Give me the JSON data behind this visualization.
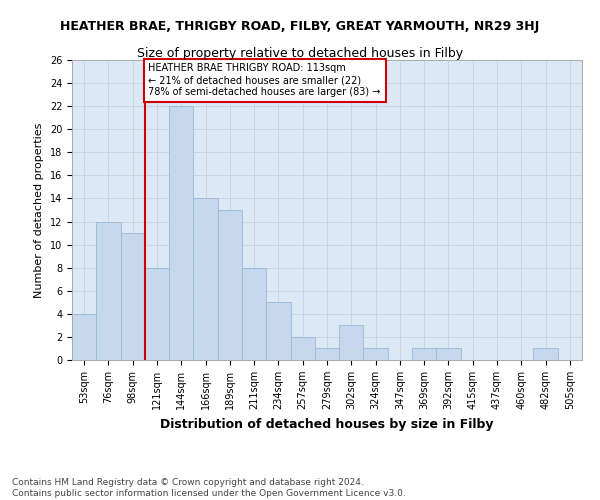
{
  "title": "HEATHER BRAE, THRIGBY ROAD, FILBY, GREAT YARMOUTH, NR29 3HJ",
  "subtitle": "Size of property relative to detached houses in Filby",
  "xlabel": "Distribution of detached houses by size in Filby",
  "ylabel": "Number of detached properties",
  "footer_line1": "Contains HM Land Registry data © Crown copyright and database right 2024.",
  "footer_line2": "Contains public sector information licensed under the Open Government Licence v3.0.",
  "bin_labels": [
    "53sqm",
    "76sqm",
    "98sqm",
    "121sqm",
    "144sqm",
    "166sqm",
    "189sqm",
    "211sqm",
    "234sqm",
    "257sqm",
    "279sqm",
    "302sqm",
    "324sqm",
    "347sqm",
    "369sqm",
    "392sqm",
    "415sqm",
    "437sqm",
    "460sqm",
    "482sqm",
    "505sqm"
  ],
  "bar_values": [
    4,
    12,
    11,
    8,
    22,
    14,
    13,
    8,
    5,
    2,
    1,
    3,
    1,
    0,
    1,
    1,
    0,
    0,
    0,
    1,
    0
  ],
  "bar_color": "#c5d8ed",
  "bar_edge_color": "#9ab8d4",
  "grid_color": "#c8d4e0",
  "plot_bg_color": "#dce9f5",
  "fig_bg_color": "#ffffff",
  "red_line_index": 3,
  "annotation_text_line1": "HEATHER BRAE THRIGBY ROAD: 113sqm",
  "annotation_text_line2": "← 21% of detached houses are smaller (22)",
  "annotation_text_line3": "78% of semi-detached houses are larger (83) →",
  "annotation_box_facecolor": "#ffffff",
  "annotation_border_color": "#cc0000",
  "red_line_color": "#cc0000",
  "ylim": [
    0,
    26
  ],
  "yticks": [
    0,
    2,
    4,
    6,
    8,
    10,
    12,
    14,
    16,
    18,
    20,
    22,
    24,
    26
  ],
  "title_fontsize": 9,
  "subtitle_fontsize": 9,
  "ylabel_fontsize": 8,
  "xlabel_fontsize": 9,
  "tick_fontsize": 7,
  "annotation_fontsize": 7,
  "footer_fontsize": 6.5
}
